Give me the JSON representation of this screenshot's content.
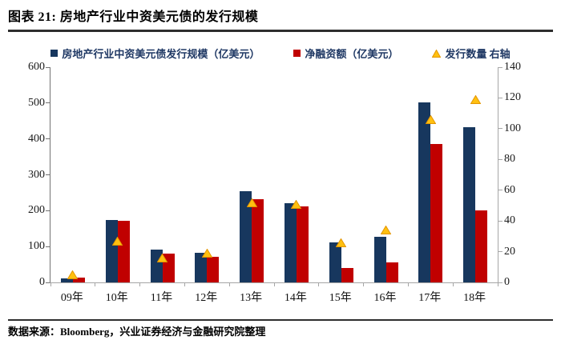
{
  "header": {
    "title": "图表 21: 房地产行业中资美元债的发行规模"
  },
  "footer": {
    "source": "数据来源：Bloomberg，兴业证券经济与金融研究院整理"
  },
  "colors": {
    "issuance_bar": "#17375E",
    "net_bar": "#C00000",
    "marker_fill": "#FFC010",
    "marker_stroke": "#E39500",
    "legend_text": "#1F3864"
  },
  "legend": [
    {
      "label": "房地产行业中资美元债发行规模（亿美元）",
      "marker": "square-icon",
      "color": "#17375E"
    },
    {
      "label": "净融资额（亿美元）",
      "marker": "square-icon",
      "color": "#C00000"
    },
    {
      "label": "发行数量 右轴",
      "marker": "triangle-icon",
      "color": "#FFC010"
    }
  ],
  "chart_data": {
    "type": "bar",
    "title": "房地产行业中资美元债的发行规模",
    "categories": [
      "09年",
      "10年",
      "11年",
      "12年",
      "13年",
      "14年",
      "15年",
      "16年",
      "17年",
      "18年"
    ],
    "series": [
      {
        "name": "房地产行业中资美元债发行规模（亿美元）",
        "type": "bar",
        "axis": "left",
        "values": [
          12,
          173,
          92,
          83,
          255,
          220,
          111,
          127,
          502,
          433
        ]
      },
      {
        "name": "净融资额（亿美元）",
        "type": "bar",
        "axis": "left",
        "values": [
          14,
          172,
          80,
          71,
          231,
          211,
          40,
          56,
          387,
          200
        ]
      },
      {
        "name": "发行数量 右轴",
        "type": "scatter-triangle",
        "axis": "right",
        "values": [
          5,
          27,
          16,
          19,
          52,
          51,
          26,
          34,
          106,
          119
        ]
      }
    ],
    "left_axis": {
      "min": 0,
      "max": 600,
      "step": 100,
      "ticks": [
        0,
        100,
        200,
        300,
        400,
        500,
        600
      ]
    },
    "right_axis": {
      "min": 0,
      "max": 140,
      "step": 20,
      "ticks": [
        0,
        20,
        40,
        60,
        80,
        100,
        120,
        140
      ]
    },
    "grid": false,
    "legend_position": "top"
  }
}
